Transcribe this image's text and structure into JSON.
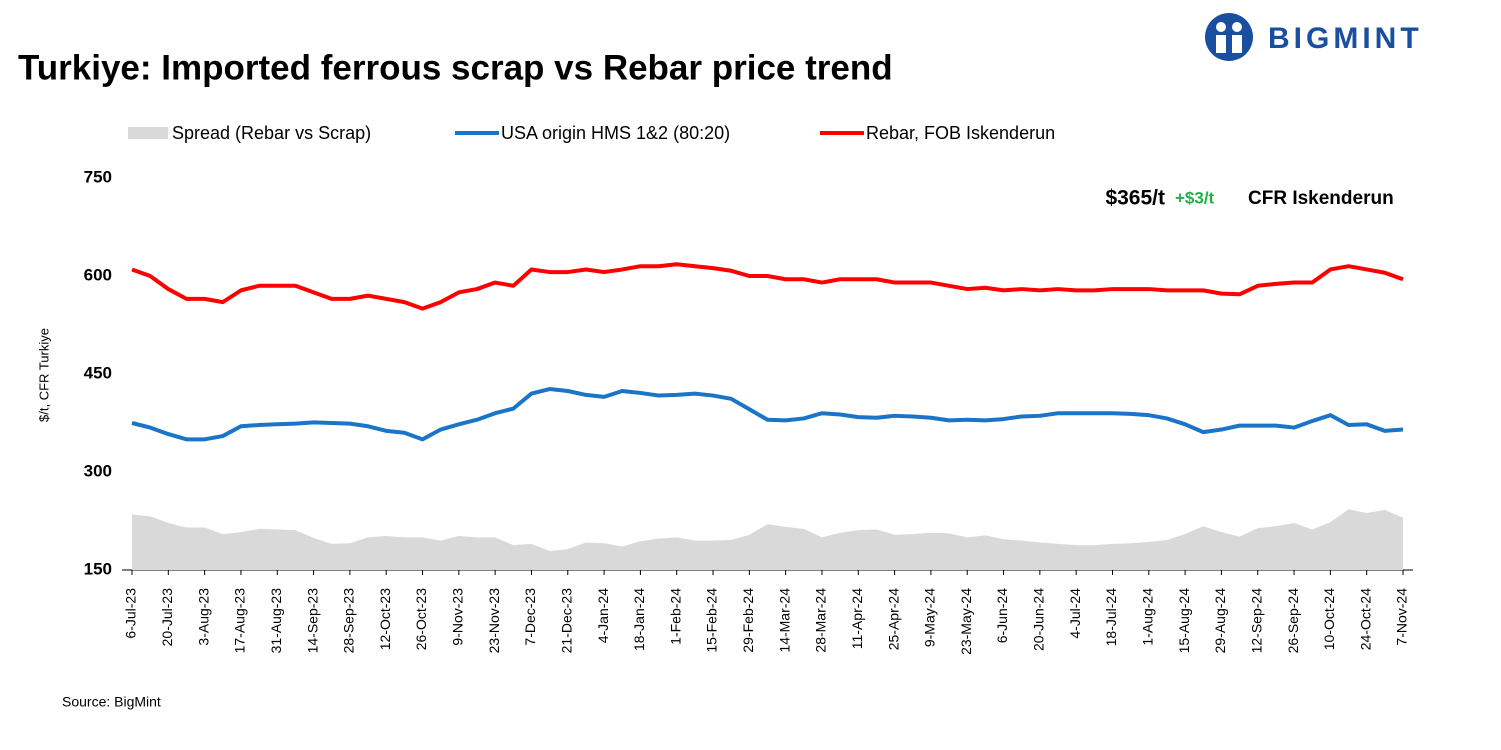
{
  "logo": "BIGMINT",
  "chart_data": {
    "type": "line",
    "title": "Turkiye: Imported ferrous scrap vs Rebar price trend",
    "y_label": "$/t, CFR Turkiye",
    "source": "Source: BigMint",
    "annotations": [
      "$365/t",
      "+$3/t",
      "CFR Iskenderun"
    ],
    "annotation_colors": [
      "#000000",
      "#22b04b",
      "#000000"
    ],
    "categories": [
      "6-Jul-23",
      null,
      "20-Jul-23",
      null,
      "3-Aug-23",
      null,
      "17-Aug-23",
      null,
      "31-Aug-23",
      null,
      "14-Sep-23",
      null,
      "28-Sep-23",
      null,
      "12-Oct-23",
      null,
      "26-Oct-23",
      null,
      "9-Nov-23",
      null,
      "23-Nov-23",
      null,
      "7-Dec-23",
      null,
      "21-Dec-23",
      null,
      "4-Jan-24",
      null,
      "18-Jan-24",
      null,
      "1-Feb-24",
      null,
      "15-Feb-24",
      null,
      "29-Feb-24",
      null,
      "14-Mar-24",
      null,
      "28-Mar-24",
      null,
      "11-Apr-24",
      null,
      "25-Apr-24",
      null,
      "9-May-24",
      null,
      "23-May-24",
      null,
      "6-Jun-24",
      null,
      "20-Jun-24",
      null,
      "4-Jul-24",
      null,
      "18-Jul-24",
      null,
      "1-Aug-24",
      null,
      "15-Aug-24",
      null,
      "29-Aug-24",
      null,
      "12-Sep-24",
      null,
      "26-Sep-24",
      null,
      "10-Oct-24",
      null,
      "24-Oct-24",
      null,
      "7-Nov-24"
    ],
    "series": [
      {
        "name": "Spread (Rebar vs Scrap)",
        "kind": "area",
        "color": "#d9d9d9",
        "values": [
          235,
          232,
          222,
          215,
          215,
          205,
          208,
          213,
          212,
          211,
          199,
          190,
          191,
          200,
          202,
          200,
          200,
          195,
          202,
          200,
          200,
          188,
          190,
          179,
          182,
          192,
          191,
          186,
          194,
          198,
          200,
          195,
          195,
          196,
          204,
          220,
          216,
          213,
          200,
          207,
          211,
          212,
          204,
          205,
          207,
          206,
          200,
          203,
          197,
          195,
          192,
          190,
          188,
          188,
          190,
          191,
          193,
          196,
          205,
          217,
          208,
          201,
          214,
          217,
          222,
          212,
          223,
          243,
          237,
          242,
          230
        ]
      },
      {
        "name": "USA origin HMS 1&2 (80:20)",
        "kind": "line",
        "color": "#1a75c8",
        "values": [
          375,
          368,
          358,
          350,
          350,
          355,
          370,
          372,
          373,
          374,
          376,
          375,
          374,
          370,
          363,
          360,
          350,
          365,
          373,
          380,
          390,
          397,
          420,
          427,
          424,
          418,
          415,
          424,
          421,
          417,
          418,
          420,
          417,
          412,
          396,
          380,
          379,
          382,
          390,
          388,
          384,
          383,
          386,
          385,
          383,
          379,
          380,
          379,
          381,
          385,
          386,
          390,
          390,
          390,
          390,
          389,
          387,
          382,
          373,
          361,
          365,
          371,
          371,
          371,
          368,
          378,
          387,
          372,
          373,
          363,
          365
        ]
      },
      {
        "name": "Rebar, FOB Iskenderun",
        "kind": "line",
        "color": "#ff0000",
        "values": [
          610,
          600,
          580,
          565,
          565,
          560,
          578,
          585,
          585,
          585,
          575,
          565,
          565,
          570,
          565,
          560,
          550,
          560,
          575,
          580,
          590,
          585,
          610,
          606,
          606,
          610,
          606,
          610,
          615,
          615,
          618,
          615,
          612,
          608,
          600,
          600,
          595,
          595,
          590,
          595,
          595,
          595,
          590,
          590,
          590,
          585,
          580,
          582,
          578,
          580,
          578,
          580,
          578,
          578,
          580,
          580,
          580,
          578,
          578,
          578,
          573,
          572,
          585,
          588,
          590,
          590,
          610,
          615,
          610,
          605,
          595
        ]
      }
    ],
    "ylim": [
      150,
      750
    ],
    "yticks": [
      150,
      300,
      450,
      600,
      750
    ],
    "grid": false
  }
}
